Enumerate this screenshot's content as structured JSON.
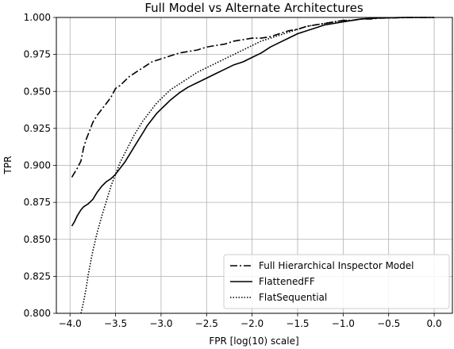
{
  "chart_data": {
    "type": "line",
    "title": "Full Model vs Alternate Architectures",
    "xlabel": "FPR [log(10) scale]",
    "ylabel": "TPR",
    "xlim": [
      -4.15,
      0.2
    ],
    "ylim": [
      0.8,
      1.0
    ],
    "x_ticks": [
      -4.0,
      -3.5,
      -3.0,
      -2.5,
      -2.0,
      -1.5,
      -1.0,
      -0.5,
      0.0
    ],
    "x_tick_labels": [
      "−4.0",
      "−3.5",
      "−3.0",
      "−2.5",
      "−2.0",
      "−1.5",
      "−1.0",
      "−0.5",
      "0.0"
    ],
    "y_ticks": [
      0.8,
      0.825,
      0.85,
      0.875,
      0.9,
      0.925,
      0.95,
      0.975,
      1.0
    ],
    "y_tick_labels": [
      "0.800",
      "0.825",
      "0.850",
      "0.875",
      "0.900",
      "0.925",
      "0.950",
      "0.975",
      "1.000"
    ],
    "grid": true,
    "legend_position": "lower-right",
    "series": [
      {
        "name": "Full Hierarchical Inspector Model",
        "style": "dashdot",
        "color": "#000000",
        "x": [
          -3.98,
          -3.95,
          -3.92,
          -3.88,
          -3.85,
          -3.82,
          -3.78,
          -3.75,
          -3.7,
          -3.65,
          -3.6,
          -3.55,
          -3.5,
          -3.45,
          -3.4,
          -3.35,
          -3.3,
          -3.25,
          -3.2,
          -3.15,
          -3.1,
          -3.05,
          -3.0,
          -2.95,
          -2.9,
          -2.8,
          -2.7,
          -2.6,
          -2.5,
          -2.4,
          -2.3,
          -2.2,
          -2.1,
          -2.0,
          -1.9,
          -1.8,
          -1.7,
          -1.6,
          -1.5,
          -1.4,
          -1.3,
          -1.2,
          -1.1,
          -1.0,
          -0.9,
          -0.8,
          -0.7,
          -0.6,
          -0.5,
          -0.4,
          -0.3,
          -0.2,
          -0.1,
          0.0
        ],
        "y": [
          0.892,
          0.895,
          0.898,
          0.903,
          0.912,
          0.918,
          0.924,
          0.929,
          0.934,
          0.938,
          0.942,
          0.946,
          0.952,
          0.954,
          0.957,
          0.96,
          0.962,
          0.964,
          0.966,
          0.968,
          0.97,
          0.971,
          0.972,
          0.973,
          0.974,
          0.976,
          0.977,
          0.978,
          0.98,
          0.981,
          0.982,
          0.984,
          0.985,
          0.986,
          0.986,
          0.987,
          0.989,
          0.991,
          0.992,
          0.994,
          0.995,
          0.996,
          0.997,
          0.998,
          0.998,
          0.999,
          0.999,
          0.9995,
          0.9997,
          0.9998,
          0.9999,
          1.0,
          1.0,
          1.0
        ]
      },
      {
        "name": "FlattenedFF",
        "style": "solid",
        "color": "#000000",
        "x": [
          -3.98,
          -3.95,
          -3.92,
          -3.88,
          -3.85,
          -3.8,
          -3.75,
          -3.7,
          -3.65,
          -3.6,
          -3.55,
          -3.5,
          -3.45,
          -3.4,
          -3.35,
          -3.3,
          -3.25,
          -3.2,
          -3.15,
          -3.1,
          -3.05,
          -3.0,
          -2.95,
          -2.9,
          -2.8,
          -2.7,
          -2.6,
          -2.5,
          -2.4,
          -2.3,
          -2.2,
          -2.1,
          -2.0,
          -1.9,
          -1.8,
          -1.7,
          -1.6,
          -1.5,
          -1.4,
          -1.3,
          -1.2,
          -1.1,
          -1.0,
          -0.9,
          -0.8,
          -0.7,
          -0.6,
          -0.5,
          -0.4,
          -0.3,
          -0.2,
          -0.1,
          0.0
        ],
        "y": [
          0.859,
          0.862,
          0.866,
          0.87,
          0.872,
          0.874,
          0.877,
          0.882,
          0.886,
          0.889,
          0.891,
          0.894,
          0.898,
          0.902,
          0.907,
          0.912,
          0.917,
          0.922,
          0.927,
          0.931,
          0.935,
          0.938,
          0.941,
          0.944,
          0.949,
          0.953,
          0.956,
          0.959,
          0.962,
          0.965,
          0.968,
          0.97,
          0.973,
          0.976,
          0.98,
          0.983,
          0.986,
          0.989,
          0.991,
          0.993,
          0.995,
          0.996,
          0.997,
          0.998,
          0.999,
          0.9993,
          0.9996,
          0.9998,
          0.9999,
          1.0,
          1.0,
          1.0,
          1.0
        ]
      },
      {
        "name": "FlatSequential",
        "style": "dotted",
        "color": "#000000",
        "x": [
          -3.88,
          -3.85,
          -3.82,
          -3.8,
          -3.75,
          -3.7,
          -3.65,
          -3.6,
          -3.55,
          -3.5,
          -3.45,
          -3.4,
          -3.35,
          -3.3,
          -3.25,
          -3.2,
          -3.15,
          -3.1,
          -3.05,
          -3.0,
          -2.9,
          -2.8,
          -2.7,
          -2.6,
          -2.5,
          -2.4,
          -2.3,
          -2.2,
          -2.1,
          -2.0,
          -1.9,
          -1.8,
          -1.7,
          -1.6,
          -1.5,
          -1.4,
          -1.3,
          -1.2,
          -1.1,
          -1.0,
          -0.9,
          -0.8,
          -0.7,
          -0.6,
          -0.5,
          -0.4,
          -0.3,
          -0.2,
          -0.1,
          0.0
        ],
        "y": [
          0.8,
          0.808,
          0.818,
          0.826,
          0.842,
          0.855,
          0.866,
          0.876,
          0.886,
          0.894,
          0.902,
          0.908,
          0.914,
          0.92,
          0.925,
          0.93,
          0.934,
          0.938,
          0.942,
          0.945,
          0.951,
          0.955,
          0.959,
          0.963,
          0.966,
          0.969,
          0.972,
          0.975,
          0.978,
          0.981,
          0.984,
          0.986,
          0.988,
          0.99,
          0.992,
          0.994,
          0.995,
          0.996,
          0.997,
          0.998,
          0.998,
          0.999,
          0.9994,
          0.9997,
          0.9998,
          0.9999,
          1.0,
          1.0,
          1.0,
          1.0
        ]
      }
    ]
  }
}
